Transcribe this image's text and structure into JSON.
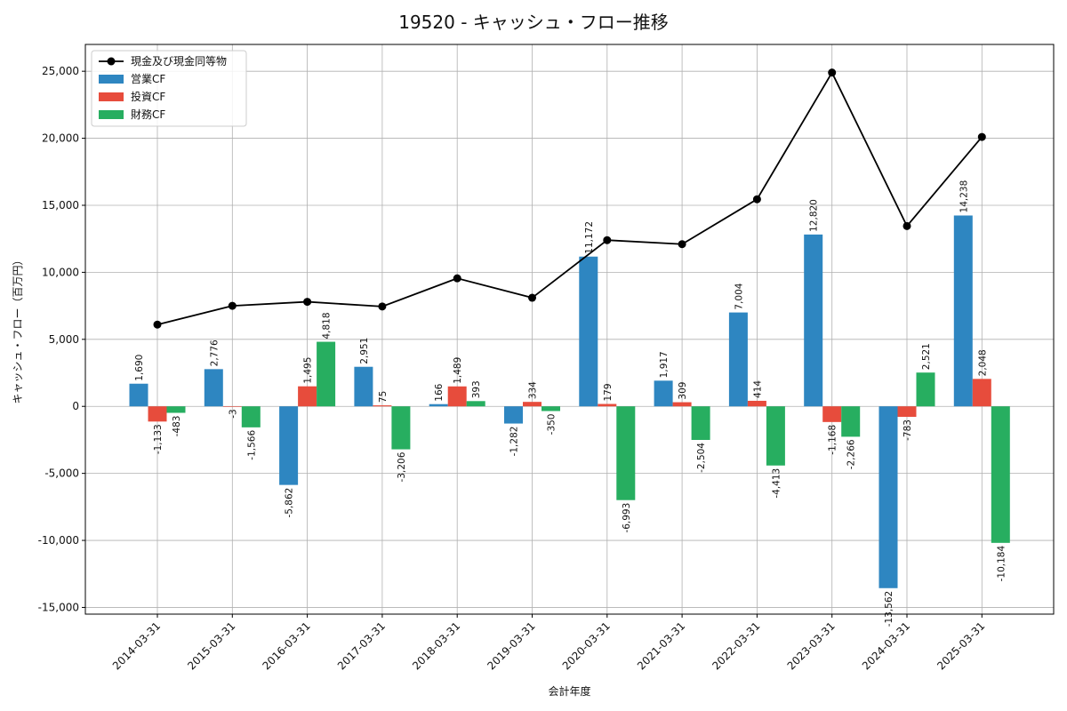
{
  "chart_data": {
    "type": "bar",
    "title": "19520 - キャッシュ・フロー推移",
    "xlabel": "会計年度",
    "ylabel": "キャッシュ・フロー（百万円）",
    "ylim": [
      -15500,
      27000
    ],
    "yticks": [
      -15000,
      -10000,
      -5000,
      0,
      5000,
      10000,
      15000,
      20000,
      25000
    ],
    "ytick_labels": [
      "-15,000",
      "-10,000",
      "-5,000",
      "0",
      "5,000",
      "10,000",
      "15,000",
      "20,000",
      "25,000"
    ],
    "grid": true,
    "legend_position": "top-left",
    "categories": [
      "2014-03-31",
      "2015-03-31",
      "2016-03-31",
      "2017-03-31",
      "2018-03-31",
      "2019-03-31",
      "2020-03-31",
      "2021-03-31",
      "2022-03-31",
      "2023-03-31",
      "2024-03-31",
      "2025-03-31"
    ],
    "series": [
      {
        "name": "営業CF",
        "kind": "bar",
        "color": "#2e86c1",
        "values": [
          1690,
          2776,
          -5862,
          2951,
          166,
          -1282,
          11172,
          1917,
          7004,
          12820,
          -13562,
          14238
        ],
        "labels": [
          "1,690",
          "2,776",
          "-5,862",
          "2,951",
          "166",
          "-1,282",
          "11,172",
          "1,917",
          "7,004",
          "12,820",
          "-13,562",
          "14,238"
        ]
      },
      {
        "name": "投資CF",
        "kind": "bar",
        "color": "#e74c3c",
        "values": [
          -1133,
          -3,
          1495,
          75,
          1489,
          334,
          179,
          309,
          414,
          -1168,
          -783,
          2048
        ],
        "labels": [
          "-1,133",
          "-3",
          "1,495",
          "75",
          "1,489",
          "334",
          "179",
          "309",
          "414",
          "-1,168",
          "-783",
          "2,048"
        ]
      },
      {
        "name": "財務CF",
        "kind": "bar",
        "color": "#27ae60",
        "values": [
          -483,
          -1566,
          4818,
          -3206,
          393,
          -350,
          -6993,
          -2504,
          -4413,
          -2266,
          2521,
          -10184
        ],
        "labels": [
          "-483",
          "-1,566",
          "4,818",
          "-3,206",
          "393",
          "-350",
          "-6,993",
          "-2,504",
          "-4,413",
          "-2,266",
          "2,521",
          "-10,184"
        ]
      },
      {
        "name": "現金及び現金同等物",
        "kind": "line",
        "color": "#000000",
        "values": [
          6100,
          7500,
          7800,
          7450,
          9550,
          8100,
          12400,
          12100,
          15450,
          24900,
          13450,
          20100
        ]
      }
    ]
  }
}
